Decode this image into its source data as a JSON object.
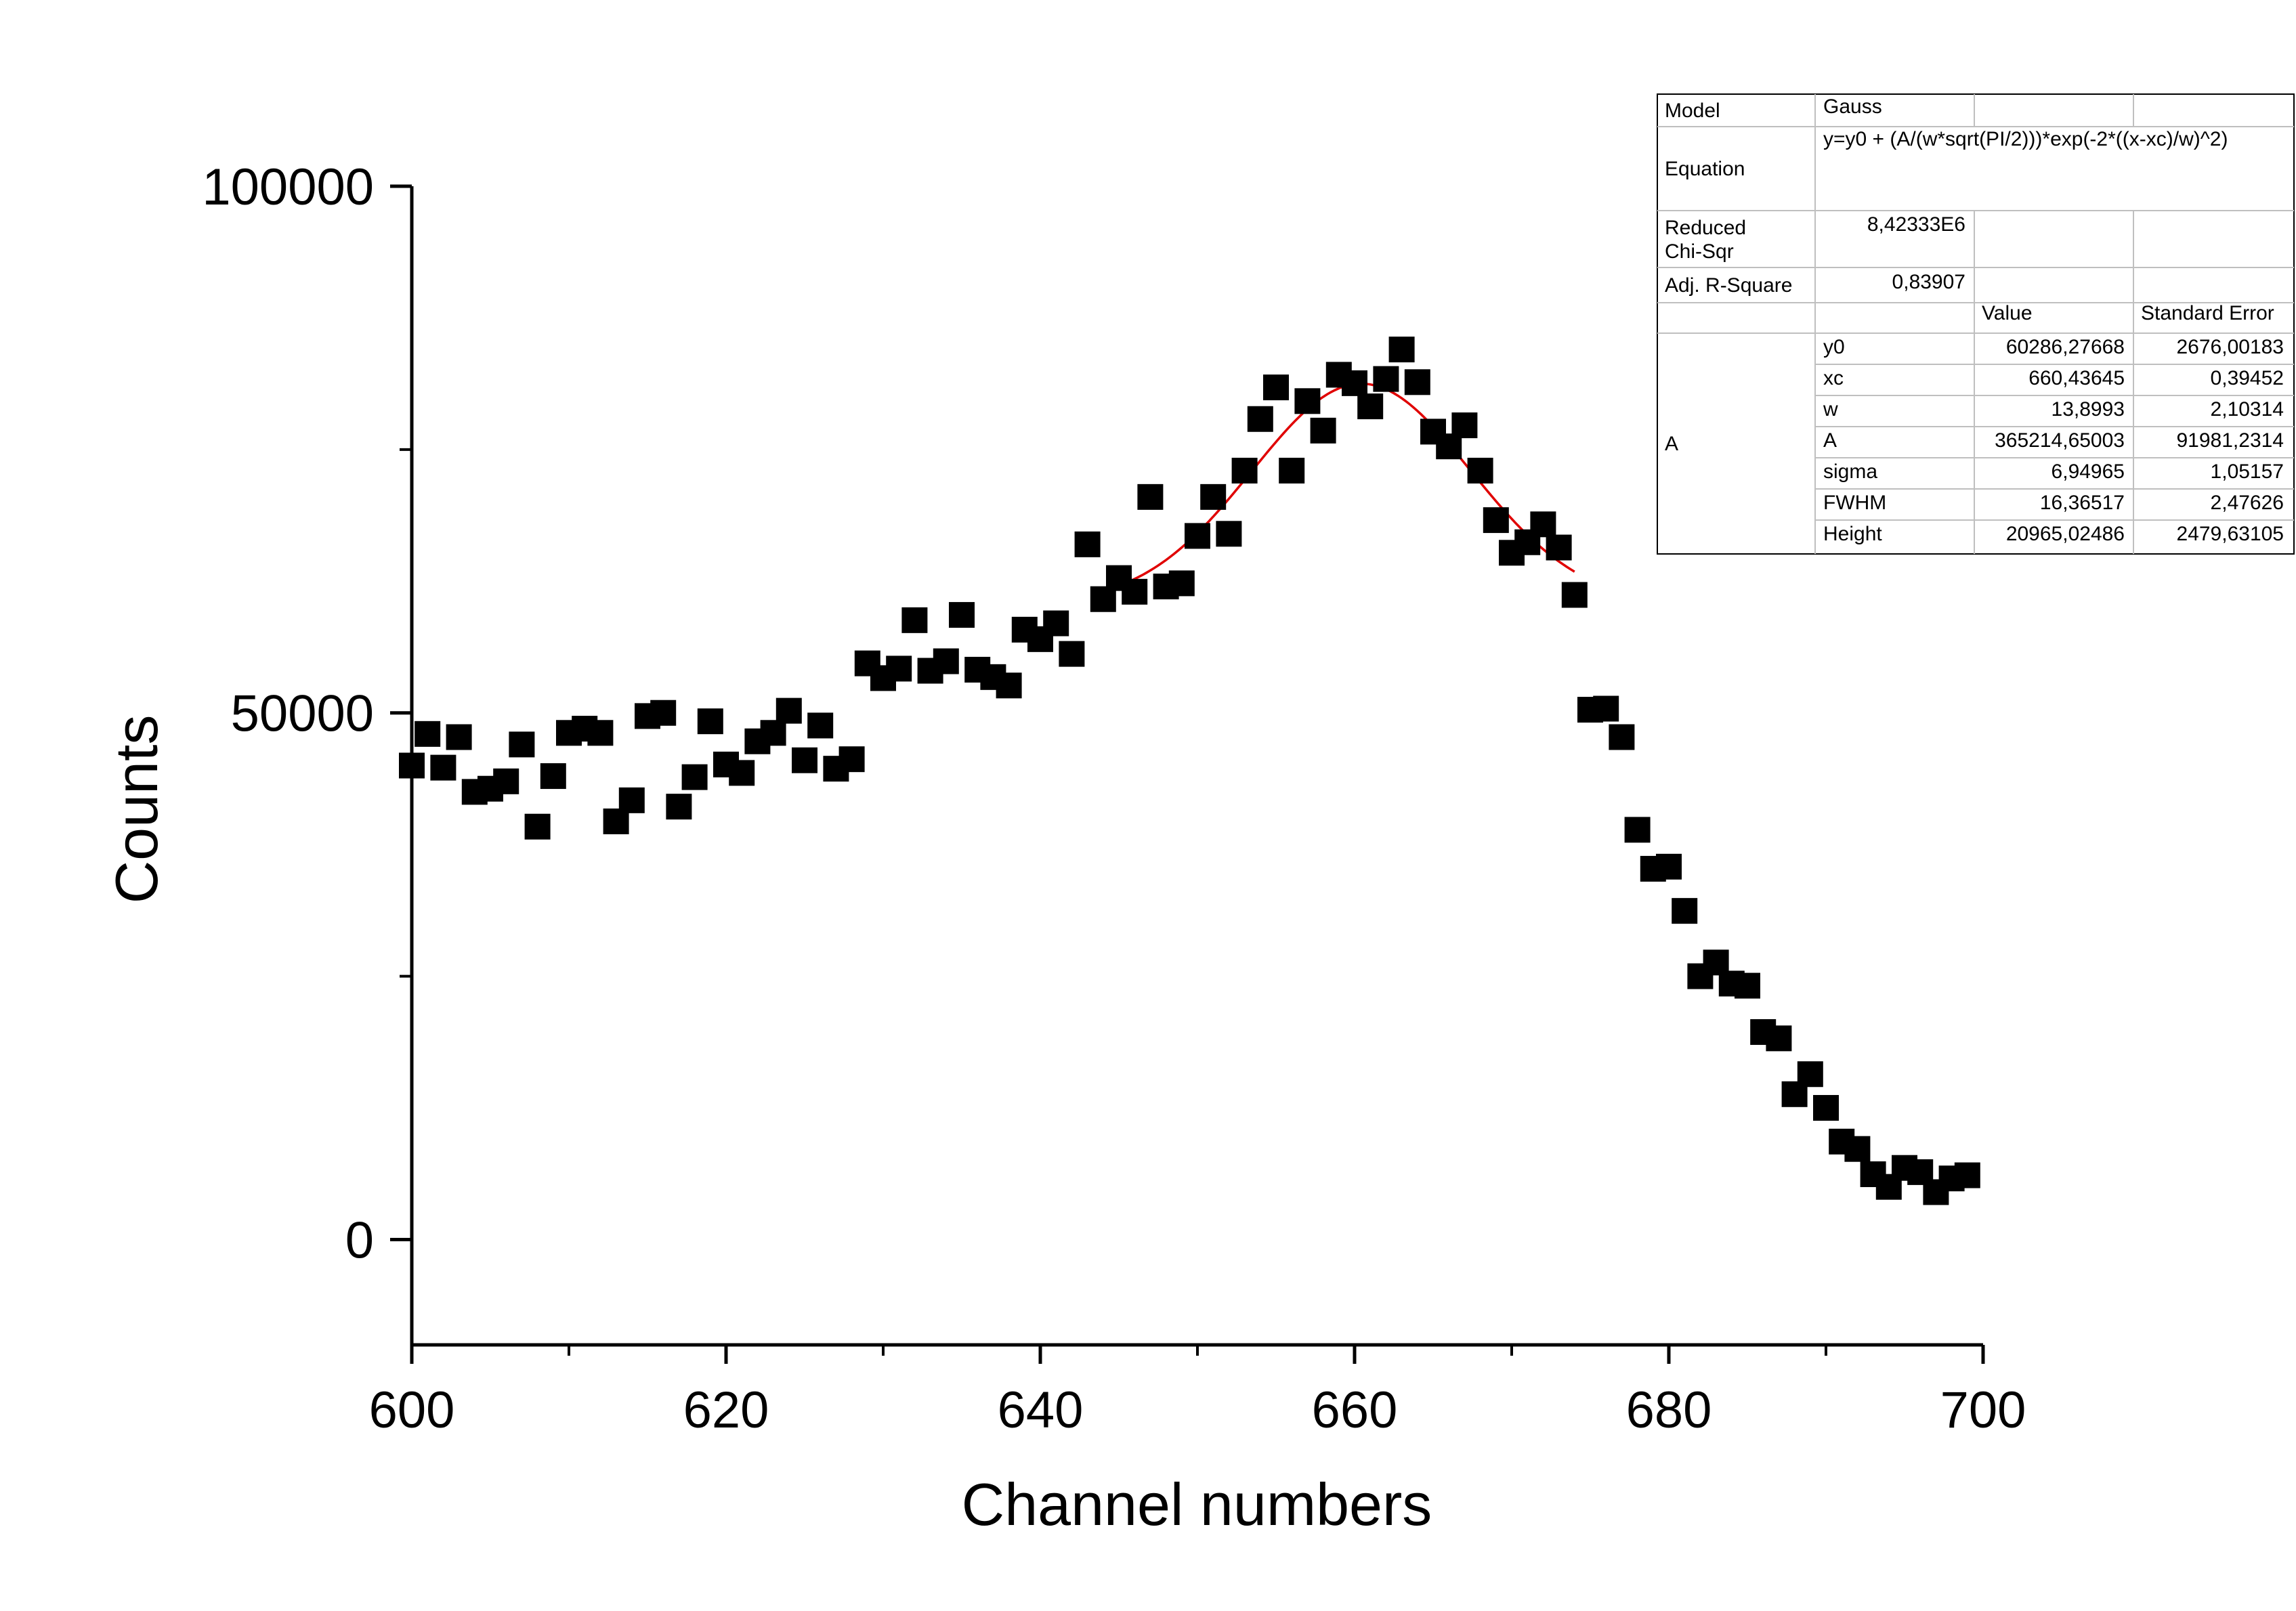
{
  "chart_data": {
    "type": "scatter",
    "xlabel": "Channel numbers",
    "ylabel": "Counts",
    "xlim": [
      600,
      700
    ],
    "ylim": [
      -10000,
      100000
    ],
    "x_ticks": [
      "600",
      "620",
      "640",
      "660",
      "680",
      "700"
    ],
    "y_ticks": [
      "0",
      "50000",
      "100000"
    ],
    "x_tick_values": [
      600,
      620,
      640,
      660,
      680,
      700
    ],
    "y_tick_values": [
      0,
      50000,
      100000
    ],
    "marker": "square",
    "marker_color": "#000000",
    "fit_color": "#e00000",
    "series": [
      {
        "x": [
          600,
          601,
          602,
          603,
          604,
          605,
          606,
          607,
          608,
          609,
          610,
          611,
          612,
          613,
          614,
          615,
          616,
          617,
          618,
          619,
          620,
          621,
          622,
          623,
          624,
          625,
          626,
          627,
          628,
          629,
          630,
          631,
          632,
          633,
          634,
          635,
          636,
          637,
          638,
          639,
          640,
          641,
          642,
          643,
          644,
          645,
          646,
          647,
          648,
          649,
          650,
          651,
          652,
          653,
          654,
          655,
          656,
          657,
          658,
          659,
          660,
          661,
          662,
          663,
          664,
          665,
          666,
          667,
          668,
          669,
          670,
          671,
          672,
          673,
          674,
          675,
          676,
          677,
          678,
          679,
          680,
          681,
          682,
          683,
          684,
          685,
          686,
          687,
          688,
          689,
          690,
          691,
          692,
          693,
          694,
          695,
          696,
          697,
          698,
          699
        ],
        "y": [
          45000,
          48000,
          44800,
          47700,
          42500,
          42800,
          43500,
          47000,
          39200,
          44000,
          48100,
          48500,
          48100,
          39700,
          41700,
          49700,
          50000,
          41100,
          43900,
          49200,
          45100,
          44300,
          47300,
          48100,
          50200,
          45500,
          48800,
          44700,
          45600,
          54700,
          53300,
          54200,
          58800,
          54000,
          54900,
          59300,
          54100,
          53400,
          52600,
          57900,
          57000,
          58500,
          55600,
          66000,
          60800,
          62800,
          61500,
          70500,
          62000,
          62300,
          66800,
          70500,
          67000,
          73000,
          77900,
          80900,
          73000,
          79600,
          76800,
          82100,
          81300,
          79100,
          81700,
          84500,
          81400,
          76700,
          75300,
          77300,
          73000,
          68300,
          65200,
          66200,
          67900,
          65700,
          61200,
          50300,
          50400,
          47700,
          38900,
          35200,
          35400,
          31200,
          25000,
          26300,
          24300,
          24100,
          19700,
          19100,
          13800,
          15700,
          12500,
          9300,
          8600,
          6200,
          5000,
          6800,
          6400,
          4500,
          5800,
          6100
        ]
      }
    ],
    "fit": {
      "model": "Gauss",
      "y0": 60286.27668,
      "xc": 660.43645,
      "w": 13.8993,
      "A": 365214.65003,
      "x_range": [
        644,
        674
      ]
    }
  },
  "fit_table": {
    "model_label": "Model",
    "model_value": "Gauss",
    "equation_label": "Equation",
    "equation_value": "y=y0 + (A/(w*sqrt(PI/2)))*exp(-2*((x-xc)/w)^2)",
    "chi_label_1": "Reduced",
    "chi_label_2": "Chi-Sqr",
    "chi_value": "8,42333E6",
    "r2_label": "Adj. R-Square",
    "r2_value": "0,83907",
    "value_header": "Value",
    "error_header": "Standard Error",
    "param_group": "A",
    "params": [
      {
        "name": "y0",
        "value": "60286,27668",
        "error": "2676,00183"
      },
      {
        "name": "xc",
        "value": "660,43645",
        "error": "0,39452"
      },
      {
        "name": "w",
        "value": "13,8993",
        "error": "2,10314"
      },
      {
        "name": "A",
        "value": "365214,65003",
        "error": "91981,2314"
      },
      {
        "name": "sigma",
        "value": "6,94965",
        "error": "1,05157"
      },
      {
        "name": "FWHM",
        "value": "16,36517",
        "error": "2,47626"
      },
      {
        "name": "Height",
        "value": "20965,02486",
        "error": "2479,63105"
      }
    ]
  }
}
